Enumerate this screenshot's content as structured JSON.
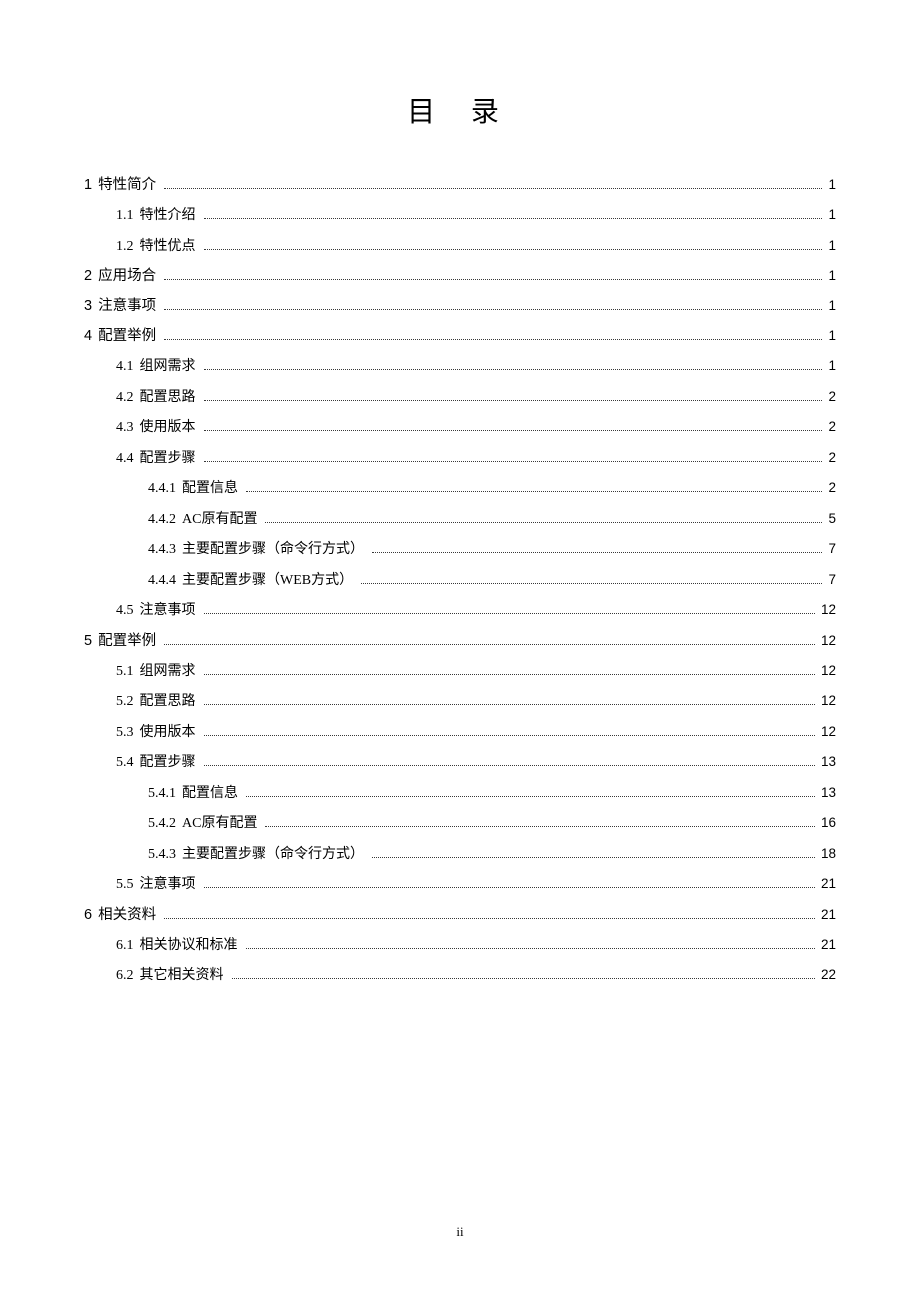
{
  "document": {
    "title": "目 录",
    "page_label": "ii",
    "title_color": "#000000",
    "text_color": "#000000",
    "dot_color": "#383838",
    "background_color": "#ffffff"
  },
  "toc": [
    {
      "level": 1,
      "num": "1",
      "text": "特性简介",
      "page": "1"
    },
    {
      "level": 2,
      "num": "1.1",
      "text": "特性介绍",
      "page": "1"
    },
    {
      "level": 2,
      "num": "1.2",
      "text": "特性优点",
      "page": "1"
    },
    {
      "level": 1,
      "num": "2",
      "text": "应用场合",
      "page": "1"
    },
    {
      "level": 1,
      "num": "3",
      "text": "注意事项",
      "page": "1"
    },
    {
      "level": 1,
      "num": "4",
      "text": "配置举例",
      "page": "1"
    },
    {
      "level": 2,
      "num": "4.1",
      "text": "组网需求",
      "page": "1"
    },
    {
      "level": 2,
      "num": "4.2",
      "text": "配置思路",
      "page": "2"
    },
    {
      "level": 2,
      "num": "4.3",
      "text": "使用版本",
      "page": "2"
    },
    {
      "level": 2,
      "num": "4.4",
      "text": "配置步骤",
      "page": "2"
    },
    {
      "level": 3,
      "num": "4.4.1",
      "text": "配置信息",
      "page": "2"
    },
    {
      "level": 3,
      "num": "4.4.2",
      "text": "AC原有配置",
      "page": "5"
    },
    {
      "level": 3,
      "num": "4.4.3",
      "text": "主要配置步骤（命令行方式）",
      "page": "7"
    },
    {
      "level": 3,
      "num": "4.4.4",
      "text": "主要配置步骤（WEB方式）",
      "page": "7"
    },
    {
      "level": 2,
      "num": "4.5",
      "text": "注意事项",
      "page": "12"
    },
    {
      "level": 1,
      "num": "5",
      "text": "配置举例",
      "page": "12"
    },
    {
      "level": 2,
      "num": "5.1",
      "text": "组网需求",
      "page": "12"
    },
    {
      "level": 2,
      "num": "5.2",
      "text": "配置思路",
      "page": "12"
    },
    {
      "level": 2,
      "num": "5.3",
      "text": "使用版本",
      "page": "12"
    },
    {
      "level": 2,
      "num": "5.4",
      "text": "配置步骤",
      "page": "13"
    },
    {
      "level": 3,
      "num": "5.4.1",
      "text": "配置信息",
      "page": "13"
    },
    {
      "level": 3,
      "num": "5.4.2",
      "text": "AC原有配置",
      "page": "16"
    },
    {
      "level": 3,
      "num": "5.4.3",
      "text": "主要配置步骤（命令行方式）",
      "page": "18"
    },
    {
      "level": 2,
      "num": "5.5",
      "text": "注意事项",
      "page": "21"
    },
    {
      "level": 1,
      "num": "6",
      "text": "相关资料",
      "page": "21"
    },
    {
      "level": 2,
      "num": "6.1",
      "text": "相关协议和标准",
      "page": "21"
    },
    {
      "level": 2,
      "num": "6.2",
      "text": "其它相关资料",
      "page": "22"
    }
  ]
}
